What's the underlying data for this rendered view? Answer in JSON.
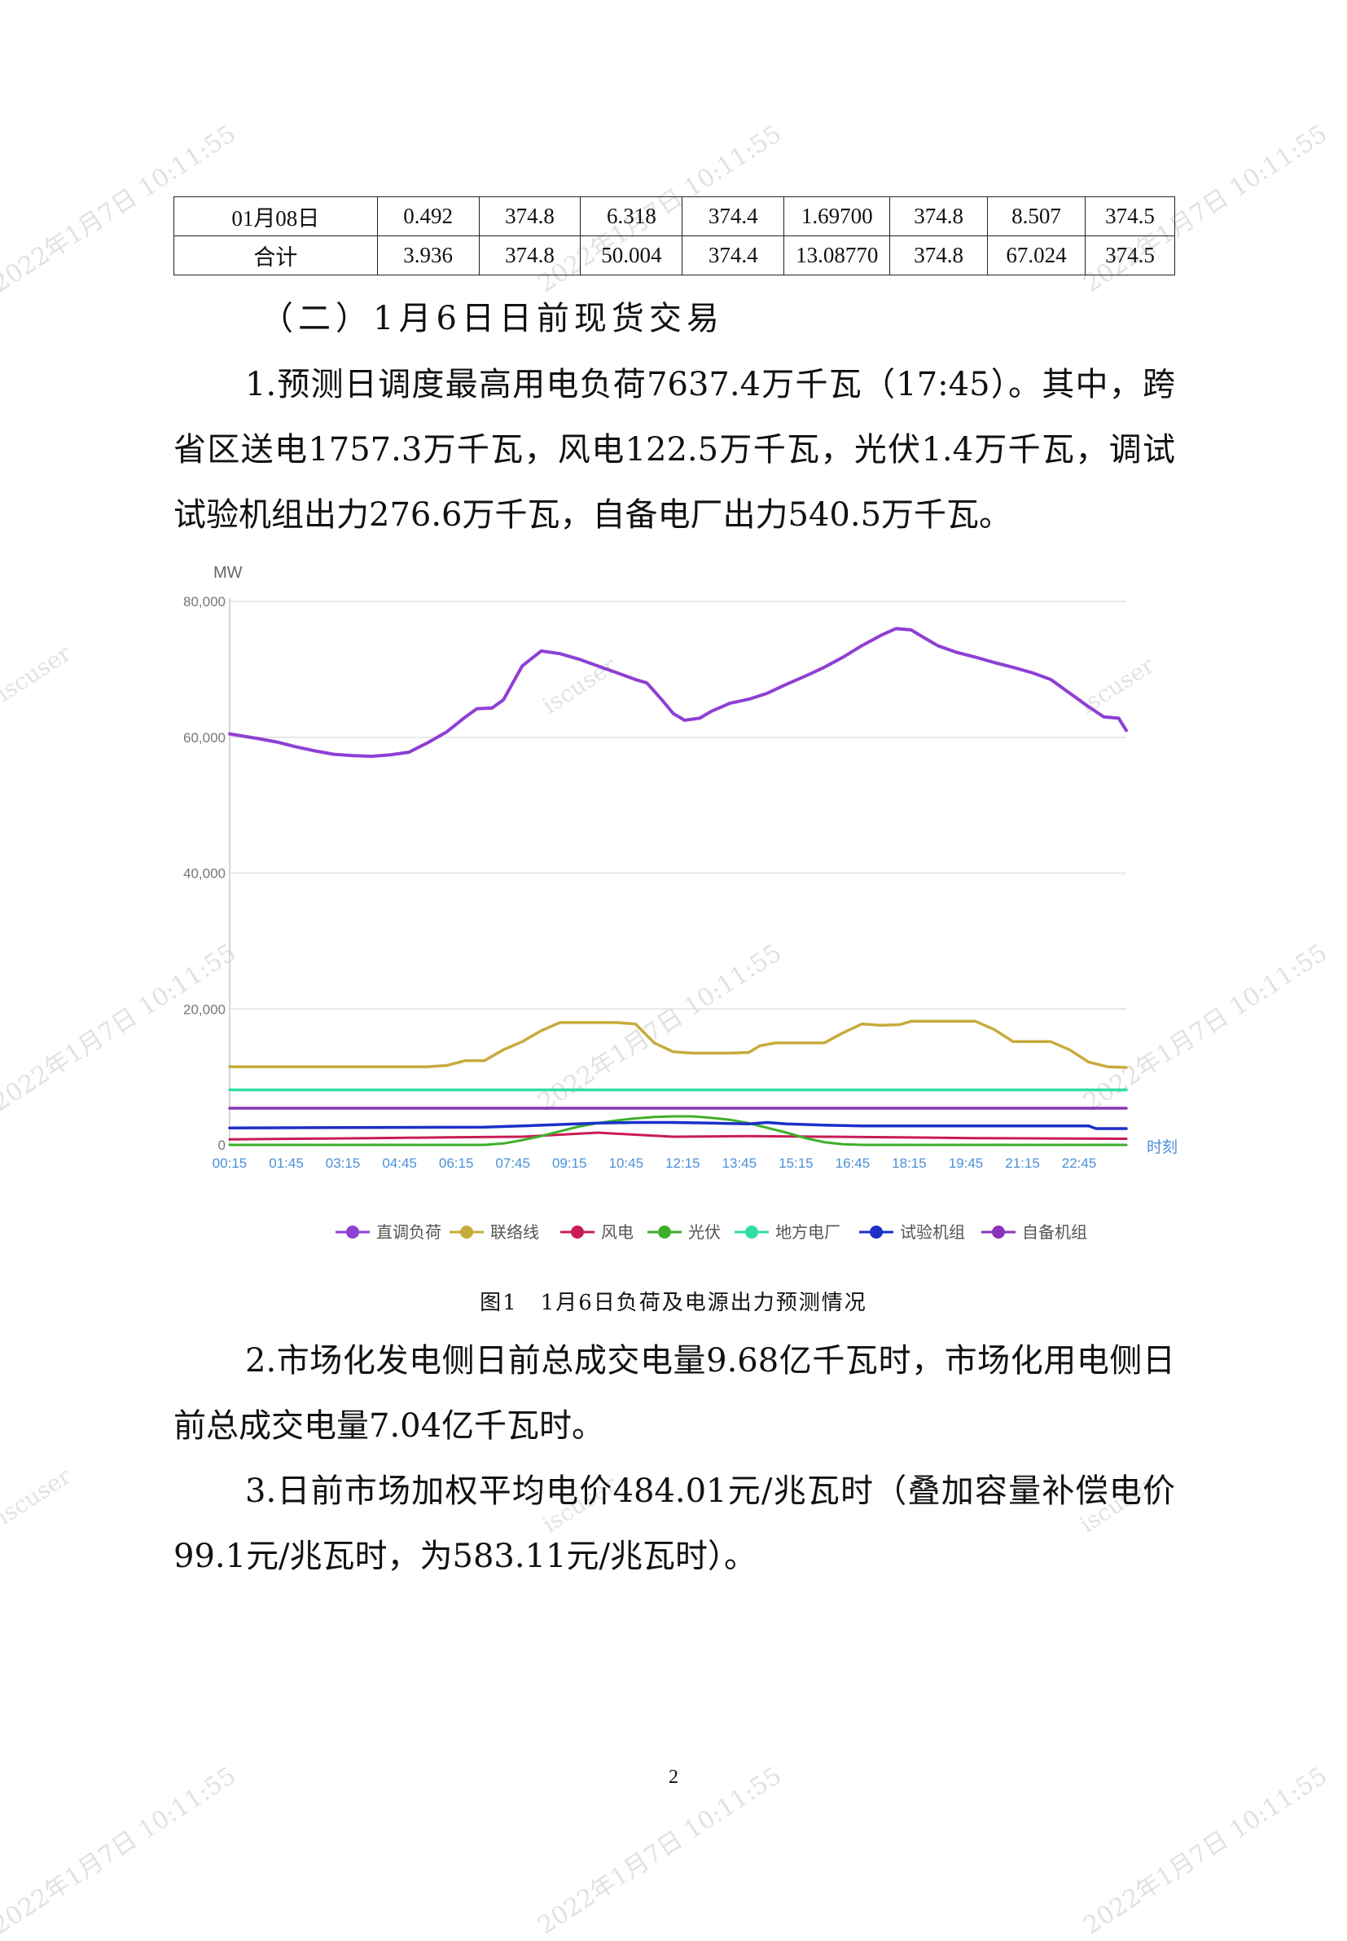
{
  "table": {
    "rows": [
      [
        "01月08日",
        "0.492",
        "374.8",
        "6.318",
        "374.4",
        "1.69700",
        "374.8",
        "8.507",
        "374.5"
      ],
      [
        "合计",
        "3.936",
        "374.8",
        "50.004",
        "374.4",
        "13.08770",
        "374.8",
        "67.024",
        "374.5"
      ]
    ]
  },
  "section_heading": "（二）1月6日日前现货交易",
  "paragraphs": {
    "p1": "1.预测日调度最高用电负荷7637.4万千瓦（17:45）。其中，跨省区送电1757.3万千瓦，风电122.5万千瓦，光伏1.4万千瓦，调试试验机组出力276.6万千瓦，自备电厂出力540.5万千瓦。",
    "p2": "2.市场化发电侧日前总成交电量9.68亿千瓦时，市场化用电侧日前总成交电量7.04亿千瓦时。",
    "p3": "3.日前市场加权平均电价484.01元/兆瓦时（叠加容量补偿电价99.1元/兆瓦时，为583.11元/兆瓦时）。"
  },
  "figure_caption": "图1　1月6日负荷及电源出力预测情况",
  "page_number": "2",
  "watermarks": {
    "timestamp": "2022年1月7日 10:11:55",
    "user": "iscuser"
  },
  "chart_data": {
    "type": "line",
    "ylabel": "MW",
    "xlabel": "时刻",
    "ylim": [
      0,
      80000
    ],
    "yticks": [
      0,
      20000,
      40000,
      60000,
      80000
    ],
    "ytick_labels": [
      "0",
      "20,000",
      "40,000",
      "60,000",
      "80,000"
    ],
    "xtick_labels": [
      "00:15",
      "01:45",
      "03:15",
      "04:45",
      "06:15",
      "07:45",
      "09:15",
      "10:45",
      "12:15",
      "13:45",
      "15:15",
      "16:45",
      "18:15",
      "19:45",
      "21:15",
      "22:45"
    ],
    "grid": true,
    "legend_position": "bottom",
    "x_hours": [
      0.25,
      24.0
    ],
    "series": [
      {
        "name": "直调负荷",
        "color": "#8f3fd4",
        "width": 4,
        "points": [
          [
            0.25,
            60500
          ],
          [
            1.0,
            59800
          ],
          [
            1.5,
            59300
          ],
          [
            2.0,
            58600
          ],
          [
            2.5,
            58000
          ],
          [
            3.0,
            57500
          ],
          [
            3.5,
            57300
          ],
          [
            4.0,
            57200
          ],
          [
            4.5,
            57400
          ],
          [
            5.0,
            57800
          ],
          [
            5.5,
            59200
          ],
          [
            6.0,
            60800
          ],
          [
            6.5,
            63000
          ],
          [
            6.8,
            64200
          ],
          [
            7.2,
            64300
          ],
          [
            7.5,
            65500
          ],
          [
            8.0,
            70500
          ],
          [
            8.5,
            72700
          ],
          [
            9.0,
            72300
          ],
          [
            9.5,
            71500
          ],
          [
            10.0,
            70500
          ],
          [
            10.5,
            69500
          ],
          [
            11.0,
            68500
          ],
          [
            11.3,
            68000
          ],
          [
            11.7,
            65500
          ],
          [
            12.0,
            63500
          ],
          [
            12.3,
            62500
          ],
          [
            12.7,
            62800
          ],
          [
            13.0,
            63800
          ],
          [
            13.5,
            65000
          ],
          [
            14.0,
            65600
          ],
          [
            14.5,
            66500
          ],
          [
            15.0,
            67800
          ],
          [
            15.5,
            69000
          ],
          [
            16.0,
            70300
          ],
          [
            16.5,
            71800
          ],
          [
            17.0,
            73500
          ],
          [
            17.5,
            75000
          ],
          [
            17.9,
            76000
          ],
          [
            18.3,
            75800
          ],
          [
            18.6,
            74800
          ],
          [
            19.0,
            73500
          ],
          [
            19.5,
            72500
          ],
          [
            20.0,
            71800
          ],
          [
            20.5,
            71000
          ],
          [
            21.0,
            70300
          ],
          [
            21.5,
            69500
          ],
          [
            22.0,
            68500
          ],
          [
            22.5,
            66500
          ],
          [
            23.0,
            64500
          ],
          [
            23.4,
            63000
          ],
          [
            23.8,
            62800
          ],
          [
            24.5,
            61000
          ]
        ]
      },
      {
        "name": "联络线",
        "color": "#c8aa3c",
        "width": 3.5,
        "points": [
          [
            0.25,
            11500
          ],
          [
            5.5,
            11500
          ],
          [
            6.0,
            11700
          ],
          [
            6.5,
            12400
          ],
          [
            7.0,
            12400
          ],
          [
            7.5,
            14000
          ],
          [
            8.0,
            15200
          ],
          [
            8.5,
            16800
          ],
          [
            9.0,
            18000
          ],
          [
            9.5,
            18000
          ],
          [
            10.0,
            18000
          ],
          [
            10.5,
            18000
          ],
          [
            11.0,
            17800
          ],
          [
            11.5,
            15000
          ],
          [
            12.0,
            13700
          ],
          [
            12.5,
            13500
          ],
          [
            13.0,
            13500
          ],
          [
            13.5,
            13500
          ],
          [
            14.0,
            13600
          ],
          [
            14.3,
            14600
          ],
          [
            14.7,
            15000
          ],
          [
            15.0,
            15000
          ],
          [
            15.5,
            15000
          ],
          [
            16.0,
            15000
          ],
          [
            16.5,
            16500
          ],
          [
            17.0,
            17800
          ],
          [
            17.5,
            17600
          ],
          [
            18.0,
            17700
          ],
          [
            18.3,
            18200
          ],
          [
            18.6,
            18200
          ],
          [
            19.0,
            18200
          ],
          [
            19.5,
            18200
          ],
          [
            20.0,
            18200
          ],
          [
            20.5,
            17000
          ],
          [
            21.0,
            15200
          ],
          [
            21.5,
            15200
          ],
          [
            22.0,
            15200
          ],
          [
            22.5,
            14000
          ],
          [
            23.0,
            12200
          ],
          [
            23.5,
            11500
          ],
          [
            24.0,
            11400
          ]
        ]
      },
      {
        "name": "风电",
        "color": "#c81c55",
        "width": 3,
        "points": [
          [
            0.25,
            800
          ],
          [
            2.0,
            900
          ],
          [
            4.0,
            1000
          ],
          [
            6.0,
            1100
          ],
          [
            8.0,
            1200
          ],
          [
            9.0,
            1500
          ],
          [
            10.0,
            1800
          ],
          [
            11.0,
            1500
          ],
          [
            12.0,
            1200
          ],
          [
            14.0,
            1300
          ],
          [
            16.0,
            1200
          ],
          [
            18.0,
            1100
          ],
          [
            20.0,
            1000
          ],
          [
            22.0,
            950
          ],
          [
            24.0,
            900
          ]
        ]
      },
      {
        "name": "光伏",
        "color": "#3fae2a",
        "width": 3,
        "points": [
          [
            0.25,
            0
          ],
          [
            7.0,
            0
          ],
          [
            7.5,
            200
          ],
          [
            8.0,
            700
          ],
          [
            8.5,
            1300
          ],
          [
            9.0,
            2000
          ],
          [
            9.5,
            2700
          ],
          [
            10.0,
            3200
          ],
          [
            10.5,
            3600
          ],
          [
            11.0,
            3900
          ],
          [
            11.5,
            4100
          ],
          [
            12.0,
            4200
          ],
          [
            12.5,
            4200
          ],
          [
            13.0,
            4000
          ],
          [
            13.5,
            3700
          ],
          [
            14.0,
            3200
          ],
          [
            14.5,
            2500
          ],
          [
            15.0,
            1800
          ],
          [
            15.5,
            1000
          ],
          [
            16.0,
            400
          ],
          [
            16.5,
            100
          ],
          [
            17.0,
            0
          ],
          [
            24.0,
            0
          ]
        ]
      },
      {
        "name": "地方电厂",
        "color": "#2fdfa0",
        "width": 3.5,
        "points": [
          [
            0.25,
            8100
          ],
          [
            24.0,
            8100
          ]
        ]
      },
      {
        "name": "试验机组",
        "color": "#1b2fc9",
        "width": 3.5,
        "points": [
          [
            0.25,
            2500
          ],
          [
            7.0,
            2600
          ],
          [
            8.0,
            2800
          ],
          [
            9.0,
            3000
          ],
          [
            10.0,
            3200
          ],
          [
            11.0,
            3300
          ],
          [
            12.0,
            3300
          ],
          [
            13.0,
            3200
          ],
          [
            14.0,
            3100
          ],
          [
            14.5,
            3300
          ],
          [
            15.0,
            3100
          ],
          [
            16.0,
            2900
          ],
          [
            17.0,
            2800
          ],
          [
            18.0,
            2800
          ],
          [
            20.0,
            2800
          ],
          [
            22.0,
            2800
          ],
          [
            23.0,
            2800
          ],
          [
            23.2,
            2400
          ],
          [
            24.0,
            2400
          ]
        ]
      },
      {
        "name": "自备机组",
        "color": "#8a35b8",
        "width": 3.5,
        "points": [
          [
            0.25,
            5400
          ],
          [
            24.0,
            5400
          ]
        ]
      }
    ]
  }
}
